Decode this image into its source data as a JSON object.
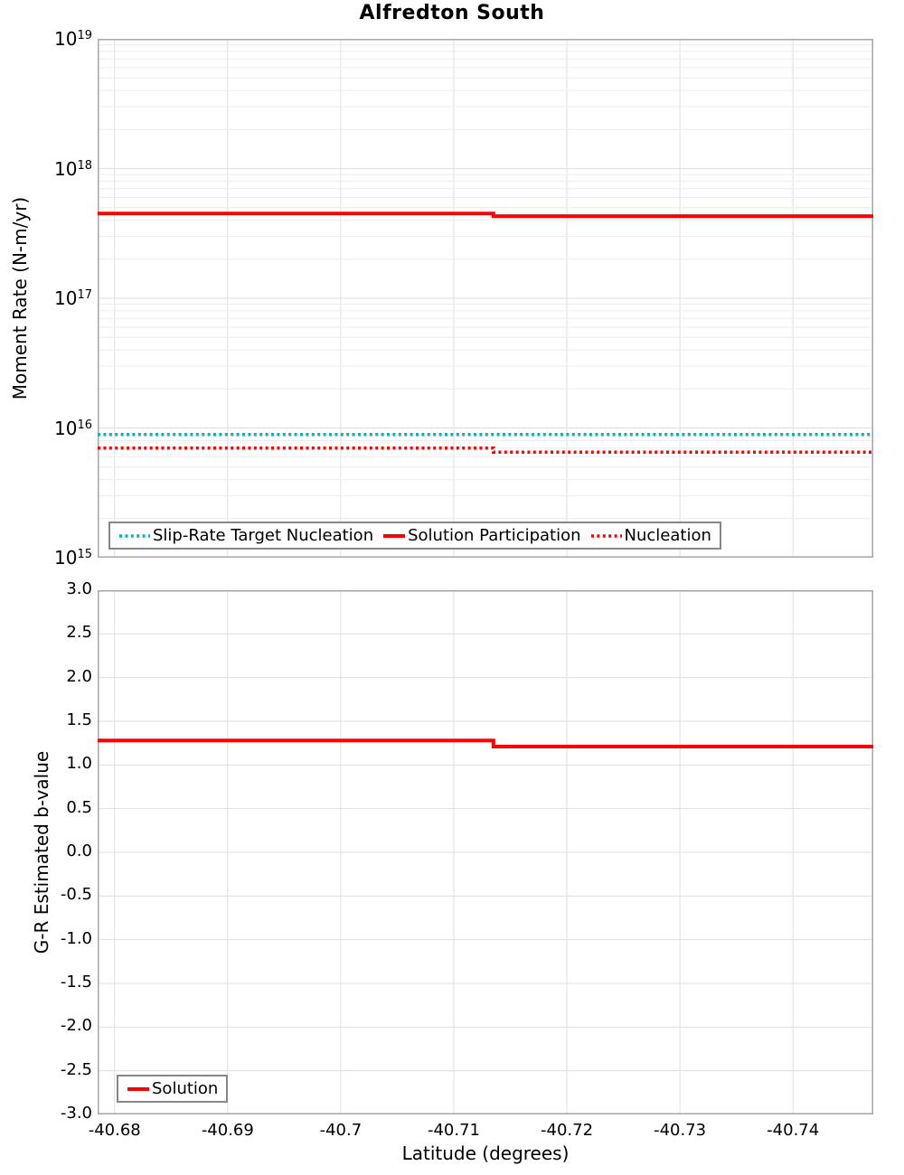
{
  "title": "Alfredton South",
  "colors": {
    "red": "#ff0000",
    "teal": "#00b5b8",
    "grid_major": "#dedede",
    "grid_minor": "#ececec",
    "axis_border": "#a6a6a6",
    "legend_border": "#878787",
    "text": "#000000",
    "background": "#ffffff"
  },
  "chart_data": [
    {
      "type": "line",
      "title": "Alfredton South",
      "ylabel": "Moment Rate (N-m/yr)",
      "yscale": "log",
      "ylim": [
        1000000000000000.0,
        1e+19
      ],
      "y_tick_base": "10",
      "y_ticks": [
        {
          "v": 1e+19,
          "exp": "19"
        },
        {
          "v": 1e+18,
          "exp": "18"
        },
        {
          "v": 1e+17,
          "exp": "17"
        },
        {
          "v": 1e+16,
          "exp": "16"
        },
        {
          "v": 1000000000000000.0,
          "exp": "15"
        }
      ],
      "xlim": [
        -40.6785,
        -40.7471
      ],
      "x_ticks": [
        {
          "v": -40.68,
          "label": "-40.68"
        },
        {
          "v": -40.69,
          "label": "-40.69"
        },
        {
          "v": -40.7,
          "label": "-40.7"
        },
        {
          "v": -40.71,
          "label": "-40.71"
        },
        {
          "v": -40.72,
          "label": "-40.72"
        },
        {
          "v": -40.73,
          "label": "-40.73"
        },
        {
          "v": -40.74,
          "label": "-40.74"
        }
      ],
      "grid": true,
      "legend_position": "bottom-left-inside",
      "series": [
        {
          "name": "Slip-Rate Target Nucleation",
          "color": "#00b5b8",
          "style": "dotted",
          "x": [
            -40.6785,
            -40.7471
          ],
          "y": [
            8900000000000000.0,
            8900000000000000.0
          ]
        },
        {
          "name": "Solution Participation",
          "color": "#ff0000",
          "style": "solid",
          "x": [
            -40.6785,
            -40.7135,
            -40.7135,
            -40.7471
          ],
          "y": [
            4.5e+17,
            4.5e+17,
            4.3e+17,
            4.3e+17
          ]
        },
        {
          "name": "Nucleation",
          "color": "#ff0000",
          "style": "dotted",
          "x": [
            -40.6785,
            -40.7135,
            -40.7135,
            -40.7471
          ],
          "y": [
            7000000000000000.0,
            7000000000000000.0,
            6500000000000000.0,
            6500000000000000.0
          ]
        }
      ]
    },
    {
      "type": "line",
      "ylabel": "G-R Estimated b-value",
      "xlabel": "Latitude (degrees)",
      "yscale": "linear",
      "ylim": [
        -3.0,
        3.0
      ],
      "y_ticks": [
        {
          "v": 3.0,
          "label": "3.0"
        },
        {
          "v": 2.5,
          "label": "2.5"
        },
        {
          "v": 2.0,
          "label": "2.0"
        },
        {
          "v": 1.5,
          "label": "1.5"
        },
        {
          "v": 1.0,
          "label": "1.0"
        },
        {
          "v": 0.5,
          "label": "0.5"
        },
        {
          "v": 0.0,
          "label": "0.0"
        },
        {
          "v": -0.5,
          "label": "-0.5"
        },
        {
          "v": -1.0,
          "label": "-1.0"
        },
        {
          "v": -1.5,
          "label": "-1.5"
        },
        {
          "v": -2.0,
          "label": "-2.0"
        },
        {
          "v": -2.5,
          "label": "-2.5"
        },
        {
          "v": -3.0,
          "label": "-3.0"
        }
      ],
      "xlim": [
        -40.6785,
        -40.7471
      ],
      "x_ticks": [
        {
          "v": -40.68,
          "label": "-40.68"
        },
        {
          "v": -40.69,
          "label": "-40.69"
        },
        {
          "v": -40.7,
          "label": "-40.7"
        },
        {
          "v": -40.71,
          "label": "-40.71"
        },
        {
          "v": -40.72,
          "label": "-40.72"
        },
        {
          "v": -40.73,
          "label": "-40.73"
        },
        {
          "v": -40.74,
          "label": "-40.74"
        }
      ],
      "grid": true,
      "legend_position": "bottom-left-inside",
      "series": [
        {
          "name": "Solution",
          "color": "#ff0000",
          "style": "solid",
          "x": [
            -40.6785,
            -40.7135,
            -40.7135,
            -40.7471
          ],
          "y": [
            1.28,
            1.28,
            1.21,
            1.21
          ]
        }
      ]
    }
  ]
}
